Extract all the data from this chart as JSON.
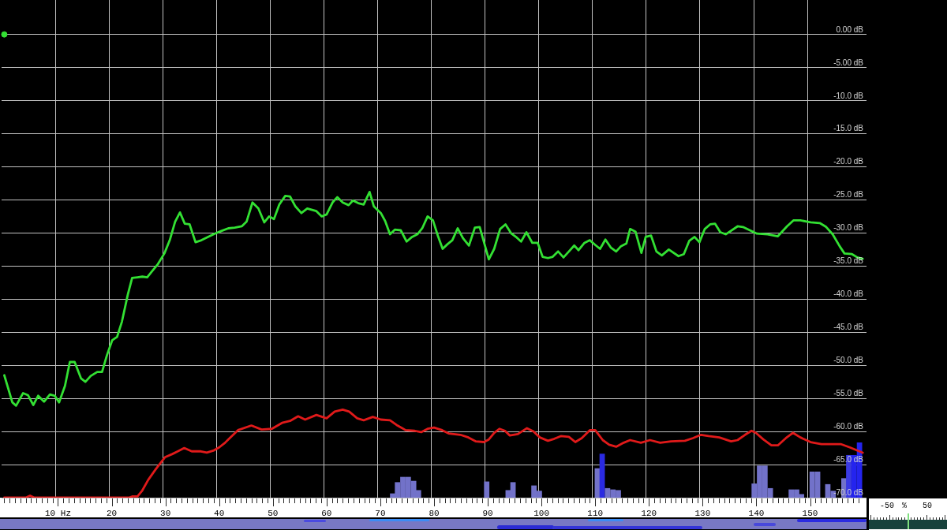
{
  "chart_data": [
    {
      "type": "line",
      "xlim": [
        0,
        160
      ],
      "ylim": [
        -70,
        5.2
      ],
      "grid": true,
      "marker": "none",
      "xticks": [
        {
          "value": 0,
          "label": null
        },
        {
          "value": 1,
          "label": null
        },
        {
          "value": 2,
          "label": null
        },
        {
          "value": 3,
          "label": null
        },
        {
          "value": 4,
          "label": null
        },
        {
          "value": 5,
          "label": null
        },
        {
          "value": 6,
          "label": null
        },
        {
          "value": 7,
          "label": null
        },
        {
          "value": 8,
          "label": null
        },
        {
          "value": 9,
          "label": null
        },
        {
          "value": 10,
          "label": "10 Hz"
        },
        {
          "value": 11,
          "label": null
        },
        {
          "value": 12,
          "label": null
        },
        {
          "value": 13,
          "label": null
        },
        {
          "value": 14,
          "label": null
        },
        {
          "value": 15,
          "label": null
        },
        {
          "value": 16,
          "label": null
        },
        {
          "value": 17,
          "label": null
        },
        {
          "value": 18,
          "label": null
        },
        {
          "value": 19,
          "label": null
        },
        20,
        {
          "value": 21,
          "label": null
        },
        {
          "value": 22,
          "label": null
        },
        {
          "value": 23,
          "label": null
        },
        {
          "value": 24,
          "label": null
        },
        {
          "value": 25,
          "label": null
        },
        {
          "value": 26,
          "label": null
        },
        {
          "value": 27,
          "label": null
        },
        {
          "value": 28,
          "label": null
        },
        {
          "value": 29,
          "label": null
        },
        30,
        {
          "value": 31,
          "label": null
        },
        {
          "value": 32,
          "label": null
        },
        {
          "value": 33,
          "label": null
        },
        {
          "value": 34,
          "label": null
        },
        {
          "value": 35,
          "label": null
        },
        {
          "value": 36,
          "label": null
        },
        {
          "value": 37,
          "label": null
        },
        {
          "value": 38,
          "label": null
        },
        {
          "value": 39,
          "label": null
        },
        40,
        {
          "value": 41,
          "label": null
        },
        {
          "value": 42,
          "label": null
        },
        {
          "value": 43,
          "label": null
        },
        {
          "value": 44,
          "label": null
        },
        {
          "value": 45,
          "label": null
        },
        {
          "value": 46,
          "label": null
        },
        {
          "value": 47,
          "label": null
        },
        {
          "value": 48,
          "label": null
        },
        {
          "value": 49,
          "label": null
        },
        50,
        {
          "value": 51,
          "label": null
        },
        {
          "value": 52,
          "label": null
        },
        {
          "value": 53,
          "label": null
        },
        {
          "value": 54,
          "label": null
        },
        {
          "value": 55,
          "label": null
        },
        {
          "value": 56,
          "label": null
        },
        {
          "value": 57,
          "label": null
        },
        {
          "value": 58,
          "label": null
        },
        {
          "value": 59,
          "label": null
        },
        60,
        {
          "value": 61,
          "label": null
        },
        {
          "value": 62,
          "label": null
        },
        {
          "value": 63,
          "label": null
        },
        {
          "value": 64,
          "label": null
        },
        {
          "value": 65,
          "label": null
        },
        {
          "value": 66,
          "label": null
        },
        {
          "value": 67,
          "label": null
        },
        {
          "value": 68,
          "label": null
        },
        {
          "value": 69,
          "label": null
        },
        70,
        {
          "value": 71,
          "label": null
        },
        {
          "value": 72,
          "label": null
        },
        {
          "value": 73,
          "label": null
        },
        {
          "value": 74,
          "label": null
        },
        {
          "value": 75,
          "label": null
        },
        {
          "value": 76,
          "label": null
        },
        {
          "value": 77,
          "label": null
        },
        {
          "value": 78,
          "label": null
        },
        {
          "value": 79,
          "label": null
        },
        80,
        {
          "value": 81,
          "label": null
        },
        {
          "value": 82,
          "label": null
        },
        {
          "value": 83,
          "label": null
        },
        {
          "value": 84,
          "label": null
        },
        {
          "value": 85,
          "label": null
        },
        {
          "value": 86,
          "label": null
        },
        {
          "value": 87,
          "label": null
        },
        {
          "value": 88,
          "label": null
        },
        {
          "value": 89,
          "label": null
        },
        90,
        {
          "value": 91,
          "label": null
        },
        {
          "value": 92,
          "label": null
        },
        {
          "value": 93,
          "label": null
        },
        {
          "value": 94,
          "label": null
        },
        {
          "value": 95,
          "label": null
        },
        {
          "value": 96,
          "label": null
        },
        {
          "value": 97,
          "label": null
        },
        {
          "value": 98,
          "label": null
        },
        {
          "value": 99,
          "label": null
        },
        100,
        {
          "value": 101,
          "label": null
        },
        {
          "value": 102,
          "label": null
        },
        {
          "value": 103,
          "label": null
        },
        {
          "value": 104,
          "label": null
        },
        {
          "value": 105,
          "label": null
        },
        {
          "value": 106,
          "label": null
        },
        {
          "value": 107,
          "label": null
        },
        {
          "value": 108,
          "label": null
        },
        {
          "value": 109,
          "label": null
        },
        110,
        {
          "value": 111,
          "label": null
        },
        {
          "value": 112,
          "label": null
        },
        {
          "value": 113,
          "label": null
        },
        {
          "value": 114,
          "label": null
        },
        {
          "value": 115,
          "label": null
        },
        {
          "value": 116,
          "label": null
        },
        {
          "value": 117,
          "label": null
        },
        {
          "value": 118,
          "label": null
        },
        {
          "value": 119,
          "label": null
        },
        120,
        {
          "value": 121,
          "label": null
        },
        {
          "value": 122,
          "label": null
        },
        {
          "value": 123,
          "label": null
        },
        {
          "value": 124,
          "label": null
        },
        {
          "value": 125,
          "label": null
        },
        {
          "value": 126,
          "label": null
        },
        {
          "value": 127,
          "label": null
        },
        {
          "value": 128,
          "label": null
        },
        {
          "value": 129,
          "label": null
        },
        130,
        {
          "value": 131,
          "label": null
        },
        {
          "value": 132,
          "label": null
        },
        {
          "value": 133,
          "label": null
        },
        {
          "value": 134,
          "label": null
        },
        {
          "value": 135,
          "label": null
        },
        {
          "value": 136,
          "label": null
        },
        {
          "value": 137,
          "label": null
        },
        {
          "value": 138,
          "label": null
        },
        {
          "value": 139,
          "label": null
        },
        140,
        {
          "value": 141,
          "label": null
        },
        {
          "value": 142,
          "label": null
        },
        {
          "value": 143,
          "label": null
        },
        {
          "value": 144,
          "label": null
        },
        {
          "value": 145,
          "label": null
        },
        {
          "value": 146,
          "label": null
        },
        {
          "value": 147,
          "label": null
        },
        {
          "value": 148,
          "label": null
        },
        {
          "value": 149,
          "label": null
        },
        150,
        {
          "value": 151,
          "label": null
        },
        {
          "value": 152,
          "label": null
        },
        {
          "value": 153,
          "label": null
        },
        {
          "value": 154,
          "label": null
        },
        {
          "value": 155,
          "label": null
        },
        {
          "value": 156,
          "label": null
        },
        {
          "value": 157,
          "label": null
        },
        {
          "value": 158,
          "label": null
        },
        {
          "value": 159,
          "label": null
        }
      ],
      "yticks": [
        {
          "value": 0,
          "label": "0.00 dB"
        },
        {
          "value": -5,
          "label": "-5.00 dB"
        },
        {
          "value": -10,
          "label": "-10.0 dB"
        },
        {
          "value": -15,
          "label": "-15.0 dB"
        },
        {
          "value": -20,
          "label": "-20.0 dB"
        },
        {
          "value": -25,
          "label": "-25.0 dB"
        },
        {
          "value": -30,
          "label": "-30.0 dB"
        },
        {
          "value": -35,
          "label": "-35.0 dB"
        },
        {
          "value": -40,
          "label": "-40.0 dB"
        },
        {
          "value": -45,
          "label": "-45.0 dB"
        },
        {
          "value": -50,
          "label": "-50.0 dB"
        },
        {
          "value": -55,
          "label": "-55.0 dB"
        },
        {
          "value": -60,
          "label": "-60.0 dB"
        },
        {
          "value": -65,
          "label": "-65.0 dB"
        },
        {
          "value": -70,
          "label": "-70.0 dB"
        }
      ],
      "series": [
        {
          "type": "bar",
          "x": [
            72.3,
            73.2,
            74.2,
            75.2,
            76.2,
            77.1,
            89.8,
            93.8,
            94.7,
            98.6,
            99.6,
            110.4,
            111.3,
            112.3,
            113.3,
            114.3,
            139.6,
            140.6,
            141.6,
            142.6,
            146.5,
            147.5,
            148.4,
            150.4,
            151.4,
            153.3,
            154.3,
            156.3,
            157.2,
            158.2,
            159.2
          ],
          "base": [
            -70,
            -70,
            -70,
            -70,
            -70,
            -70,
            -70,
            -70,
            -70,
            -70,
            -70,
            -70,
            -70,
            -70,
            -70,
            -70,
            -70,
            -70,
            -70,
            -70,
            -70,
            -70,
            -70,
            -70,
            -70,
            -70,
            -70,
            -70,
            -70,
            -70,
            -70
          ],
          "values": [
            0.6,
            2.3,
            3.1,
            3.1,
            2.5,
            1.1,
            2.4,
            1.1,
            2.3,
            1.8,
            1.0,
            4.4,
            6.6,
            1.4,
            1.2,
            1.1,
            2.1,
            4.8,
            4.8,
            1.4,
            1.2,
            1.2,
            0.5,
            3.9,
            3.9,
            2.0,
            1.0,
            2.9,
            6.4,
            6.4,
            8.3
          ],
          "colors": [
            "#7272c9",
            "#7272c9",
            "#7272c9",
            "#7272c9",
            "#7272c9",
            "#7272c9",
            "#7272c9",
            "#7272c9",
            "#7272c9",
            "#7272c9",
            "#7272c9",
            "#7272c9",
            "#2a2ae2",
            "#7272c9",
            "#7272c9",
            "#7272c9",
            "#7272c9",
            "#7272c9",
            "#7272c9",
            "#7272c9",
            "#7272c9",
            "#7272c9",
            "#7272c9",
            "#7272c9",
            "#7272c9",
            "#7272c9",
            "#7272c9",
            "#7272c9",
            "#3a3ae4",
            "#2424ee",
            "#2424ee"
          ]
        },
        {
          "color": "#e01a1a",
          "x": [
            0,
            4.0,
            4.8,
            5.6,
            23.2,
            23.9,
            24.8,
            25.7,
            26.8,
            28.2,
            29.9,
            31.3,
            32.3,
            33.5,
            34.9,
            36.6,
            37.7,
            38.9,
            40.0,
            41.1,
            41.7,
            43.5,
            46.0,
            47.9,
            49.8,
            51.7,
            53.2,
            54.7,
            56.0,
            58.1,
            60.0,
            61.5,
            63.0,
            64.2,
            65.7,
            66.9,
            68.6,
            70.1,
            71.8,
            73.0,
            74.7,
            76.4,
            77.6,
            78.8,
            80.0,
            81.5,
            82.7,
            84.9,
            86.4,
            87.8,
            89.3,
            90.2,
            91.2,
            92.2,
            93.2,
            94.1,
            95.6,
            97.3,
            98.5,
            99.7,
            101.2,
            102.4,
            103.6,
            105.1,
            106.3,
            107.5,
            109.0,
            110.0,
            111.4,
            112.6,
            113.9,
            115.3,
            116.5,
            118.5,
            120.2,
            122.1,
            124.1,
            126.7,
            128.2,
            129.7,
            131.1,
            133.1,
            135.3,
            136.5,
            137.9,
            139.1,
            139.9,
            141.3,
            142.8,
            144.0,
            145.5,
            146.8,
            148.2,
            150.1,
            152.1,
            154.0,
            155.7,
            157.4,
            159.8
          ],
          "values": [
            -70.0,
            -70.0,
            -69.7,
            -70.0,
            -70.0,
            -69.8,
            -69.8,
            -68.9,
            -67.3,
            -65.7,
            -63.9,
            -63.4,
            -63.0,
            -62.5,
            -63.0,
            -63.0,
            -63.2,
            -62.9,
            -62.4,
            -61.7,
            -61.2,
            -59.8,
            -59.1,
            -59.7,
            -59.6,
            -58.7,
            -58.4,
            -57.7,
            -58.2,
            -57.5,
            -58.0,
            -57.0,
            -56.7,
            -57.0,
            -58.0,
            -58.3,
            -57.8,
            -58.2,
            -58.3,
            -59.0,
            -59.8,
            -59.9,
            -60.1,
            -59.6,
            -59.4,
            -59.8,
            -60.3,
            -60.5,
            -60.9,
            -61.5,
            -61.6,
            -61.2,
            -60.2,
            -59.6,
            -59.9,
            -60.6,
            -60.4,
            -59.5,
            -60.0,
            -60.9,
            -61.4,
            -61.1,
            -60.7,
            -60.8,
            -61.6,
            -61.0,
            -59.8,
            -59.8,
            -61.3,
            -62.0,
            -62.3,
            -61.7,
            -61.3,
            -61.7,
            -61.3,
            -61.7,
            -61.5,
            -61.4,
            -61.0,
            -60.5,
            -60.7,
            -60.9,
            -61.5,
            -61.3,
            -60.5,
            -59.9,
            -60.2,
            -61.2,
            -62.1,
            -62.1,
            -61.0,
            -60.2,
            -60.9,
            -61.6,
            -61.9,
            -61.9,
            -61.9,
            -62.4,
            -63.2
          ]
        },
        {
          "color": "#33e033",
          "x": [
            0,
            1.5,
            2.2,
            3.5,
            4.4,
            5.4,
            6.3,
            7.4,
            8.5,
            9.4,
            10.2,
            11.3,
            12.2,
            13.1,
            14.3,
            15.1,
            16.1,
            17.3,
            18.2,
            19.1,
            20.1,
            21.0,
            21.9,
            23.0,
            23.8,
            24.8,
            25.7,
            26.6,
            27.6,
            28.6,
            29.8,
            30.8,
            31.8,
            32.7,
            33.6,
            34.5,
            35.6,
            36.7,
            37.9,
            39.2,
            40.4,
            41.7,
            42.9,
            44.2,
            45.1,
            46.2,
            47.3,
            48.4,
            49.3,
            50.2,
            51.2,
            52.3,
            53.2,
            54.2,
            55.3,
            56.4,
            58.1,
            59.1,
            60.0,
            61.1,
            62.0,
            63.0,
            64.1,
            64.9,
            65.9,
            66.9,
            68.0,
            68.8,
            70.1,
            70.9,
            71.8,
            72.7,
            73.8,
            74.9,
            75.9,
            76.9,
            77.8,
            78.8,
            79.8,
            80.7,
            81.6,
            82.5,
            83.4,
            84.4,
            85.4,
            86.5,
            87.6,
            88.5,
            90.2,
            91.2,
            92.3,
            93.3,
            94.4,
            95.4,
            96.2,
            97.2,
            98.3,
            99.3,
            100.2,
            101.2,
            102.1,
            103.1,
            104.1,
            105.1,
            106.1,
            106.9,
            108.0,
            109.0,
            110.0,
            110.9,
            111.9,
            112.9,
            113.9,
            114.8,
            115.8,
            116.5,
            117.5,
            118.6,
            119.4,
            120.4,
            121.4,
            122.4,
            123.7,
            125.5,
            126.5,
            127.5,
            128.5,
            129.4,
            130.4,
            131.4,
            132.3,
            133.3,
            134.3,
            136.5,
            137.5,
            140.1,
            142.1,
            144.0,
            145.7,
            146.9,
            148.2,
            150.1,
            151.8,
            153.0,
            154.2,
            155.5,
            156.4,
            157.8,
            158.8,
            159.8
          ],
          "values": [
            -51.5,
            -55.6,
            -56.1,
            -54.2,
            -54.5,
            -56.0,
            -54.6,
            -55.5,
            -54.4,
            -54.6,
            -55.6,
            -53.1,
            -49.5,
            -49.5,
            -52.0,
            -52.5,
            -51.6,
            -51.0,
            -51.0,
            -48.5,
            -46.2,
            -45.7,
            -43.4,
            -39.3,
            -36.8,
            -36.7,
            -36.6,
            -36.7,
            -35.7,
            -34.7,
            -33.1,
            -31.1,
            -28.3,
            -26.9,
            -28.6,
            -28.7,
            -31.4,
            -31.1,
            -30.6,
            -30.1,
            -29.7,
            -29.3,
            -29.2,
            -29.0,
            -28.3,
            -25.4,
            -26.3,
            -28.4,
            -27.5,
            -27.9,
            -25.7,
            -24.4,
            -24.5,
            -26.0,
            -27.0,
            -26.3,
            -26.7,
            -27.5,
            -27.2,
            -25.4,
            -24.6,
            -25.4,
            -25.8,
            -25.1,
            -25.5,
            -25.7,
            -23.8,
            -26.0,
            -27.0,
            -28.2,
            -30.2,
            -29.5,
            -29.6,
            -31.3,
            -30.6,
            -30.2,
            -29.3,
            -27.5,
            -28.1,
            -30.4,
            -32.4,
            -31.7,
            -31.1,
            -29.3,
            -30.8,
            -31.9,
            -29.2,
            -29.1,
            -34.0,
            -32.4,
            -29.4,
            -28.7,
            -30.1,
            -30.7,
            -31.3,
            -29.9,
            -31.5,
            -31.5,
            -33.6,
            -33.8,
            -33.6,
            -32.8,
            -33.7,
            -32.8,
            -31.9,
            -32.6,
            -31.5,
            -31.1,
            -31.8,
            -32.4,
            -31.0,
            -32.2,
            -32.8,
            -32.0,
            -31.6,
            -29.4,
            -29.8,
            -33.0,
            -30.6,
            -30.4,
            -32.8,
            -33.4,
            -32.5,
            -33.5,
            -33.2,
            -31.2,
            -30.6,
            -31.4,
            -29.4,
            -28.7,
            -28.6,
            -29.9,
            -30.2,
            -29.0,
            -29.1,
            -30.1,
            -30.2,
            -30.5,
            -29.0,
            -28.1,
            -28.1,
            -28.4,
            -28.5,
            -29.1,
            -30.2,
            -32.0,
            -33.1,
            -33.2,
            -33.7,
            -33.9
          ]
        },
        {
          "type": "scatter",
          "color": "#33e033",
          "marker": "circle",
          "x": [
            0
          ],
          "values": [
            0
          ]
        }
      ]
    },
    {
      "type": "other",
      "annotations": [
        "-50",
        "%",
        "50"
      ]
    }
  ]
}
